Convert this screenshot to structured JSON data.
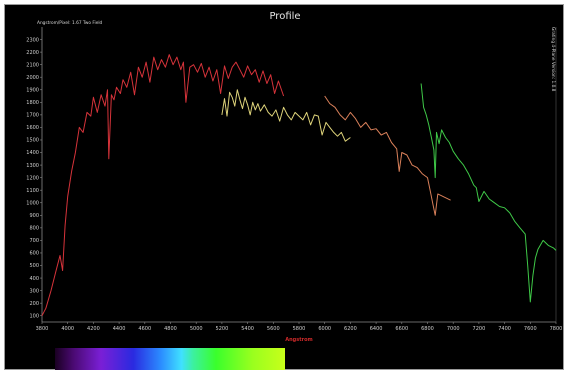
{
  "colors": {
    "background": "#000000",
    "axis": "#8a8a8a",
    "text": "#d8d8d8",
    "xlabel": "#d02a2a",
    "series_red": "#d6333a",
    "series_yellow": "#ded37a",
    "series_orange": "#d9805a",
    "series_green": "#3fc948"
  },
  "chart_data": {
    "type": "line",
    "title": "Profile",
    "subtitle": "Angstrom/Pixel: 1.67 Two Field",
    "side_label": "Grating 4-Plane Version: 1.0.8",
    "xlabel": "Angstrom",
    "ylabel": "",
    "xlim": [
      3800,
      7800
    ],
    "ylim": [
      50,
      2400
    ],
    "x_ticks": [
      "3800",
      "4000",
      "4200",
      "4400",
      "4600",
      "4800",
      "5000",
      "5200",
      "5400",
      "5600",
      "5800",
      "6000",
      "6200",
      "6400",
      "6600",
      "6800",
      "7000",
      "7200",
      "7400",
      "7600",
      "7800"
    ],
    "y_ticks": [
      "100",
      "200",
      "300",
      "400",
      "500",
      "600",
      "700",
      "800",
      "900",
      "1000",
      "1100",
      "1200",
      "1300",
      "1400",
      "1500",
      "1600",
      "1700",
      "1800",
      "1900",
      "2000",
      "2100",
      "2200",
      "2300"
    ],
    "grid": false,
    "legend": "none",
    "series": [
      {
        "color": "#d6333a",
        "x": [
          3800,
          3830,
          3870,
          3910,
          3940,
          3960,
          3980,
          4000,
          4030,
          4060,
          4090,
          4120,
          4150,
          4180,
          4200,
          4230,
          4260,
          4290,
          4310,
          4320,
          4340,
          4360,
          4380,
          4410,
          4430,
          4460,
          4490,
          4520,
          4550,
          4580,
          4610,
          4640,
          4670,
          4700,
          4730,
          4760,
          4790,
          4820,
          4850,
          4880,
          4900,
          4920,
          4950,
          4980,
          5010,
          5040,
          5070,
          5100,
          5130,
          5160,
          5190,
          5220,
          5250,
          5280,
          5310,
          5340,
          5370,
          5400,
          5430,
          5460,
          5490,
          5520,
          5550,
          5580,
          5610,
          5640,
          5680
        ],
        "y": [
          100,
          160,
          300,
          460,
          580,
          460,
          820,
          1050,
          1250,
          1400,
          1600,
          1560,
          1720,
          1690,
          1840,
          1720,
          1860,
          1770,
          1900,
          1350,
          1860,
          1820,
          1920,
          1870,
          1980,
          1920,
          2040,
          1860,
          2080,
          2000,
          2120,
          1960,
          2160,
          2060,
          2140,
          2080,
          2180,
          2100,
          2160,
          2060,
          2120,
          1800,
          2080,
          2100,
          2040,
          2110,
          2000,
          2080,
          1970,
          2060,
          1870,
          2090,
          1990,
          2080,
          2120,
          2060,
          2000,
          2090,
          2020,
          2060,
          1960,
          2050,
          1950,
          2020,
          1870,
          1970,
          1850
        ]
      },
      {
        "color": "#ded37a",
        "x": [
          5200,
          5220,
          5240,
          5260,
          5280,
          5300,
          5320,
          5340,
          5360,
          5380,
          5400,
          5420,
          5440,
          5460,
          5480,
          5500,
          5530,
          5560,
          5590,
          5620,
          5650,
          5680,
          5710,
          5740,
          5770,
          5800,
          5830,
          5860,
          5890,
          5920,
          5950,
          5980,
          6010,
          6040,
          6070,
          6100,
          6130,
          6160,
          6200
        ],
        "y": [
          1700,
          1830,
          1690,
          1880,
          1840,
          1770,
          1900,
          1820,
          1750,
          1840,
          1780,
          1700,
          1800,
          1740,
          1790,
          1730,
          1780,
          1720,
          1690,
          1740,
          1650,
          1760,
          1700,
          1660,
          1720,
          1690,
          1660,
          1720,
          1620,
          1700,
          1690,
          1540,
          1640,
          1600,
          1560,
          1530,
          1560,
          1490,
          1520
        ]
      },
      {
        "color": "#d9805a",
        "x": [
          6000,
          6040,
          6080,
          6120,
          6160,
          6200,
          6240,
          6280,
          6320,
          6360,
          6400,
          6440,
          6480,
          6520,
          6560,
          6580,
          6600,
          6640,
          6680,
          6720,
          6760,
          6800,
          6820,
          6840,
          6860,
          6880,
          6900,
          6940,
          6980
        ],
        "y": [
          1850,
          1790,
          1760,
          1700,
          1660,
          1720,
          1670,
          1600,
          1640,
          1580,
          1590,
          1540,
          1560,
          1480,
          1430,
          1250,
          1400,
          1380,
          1300,
          1280,
          1230,
          1200,
          1100,
          1000,
          900,
          1070,
          1060,
          1040,
          1020
        ]
      },
      {
        "color": "#3fc948",
        "x": [
          6750,
          6770,
          6790,
          6810,
          6830,
          6850,
          6860,
          6870,
          6890,
          6910,
          6940,
          6970,
          7000,
          7040,
          7080,
          7120,
          7160,
          7180,
          7200,
          7240,
          7280,
          7320,
          7360,
          7400,
          7440,
          7480,
          7520,
          7560,
          7580,
          7600,
          7620,
          7640,
          7660,
          7700,
          7740,
          7780,
          7800
        ],
        "y": [
          1950,
          1760,
          1700,
          1620,
          1520,
          1420,
          1200,
          1560,
          1470,
          1580,
          1520,
          1480,
          1410,
          1350,
          1300,
          1230,
          1140,
          1120,
          1010,
          1090,
          1030,
          1000,
          970,
          960,
          920,
          850,
          800,
          750,
          500,
          210,
          420,
          560,
          630,
          700,
          660,
          640,
          620
        ]
      }
    ]
  }
}
